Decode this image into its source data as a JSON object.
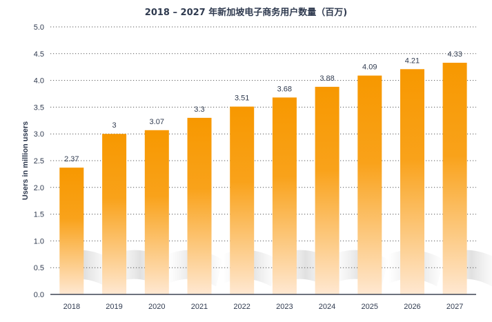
{
  "chart_data": {
    "type": "bar",
    "title": "2018 – 2027 年新加坡电子商务用户数量（百万)",
    "xlabel": "",
    "ylabel": "Users in million users",
    "categories": [
      "2018",
      "2019",
      "2020",
      "2021",
      "2022",
      "2023",
      "2024",
      "2025",
      "2026",
      "2027"
    ],
    "values": [
      2.37,
      3,
      3.07,
      3.3,
      3.51,
      3.68,
      3.88,
      4.09,
      4.21,
      4.33
    ],
    "value_labels": [
      "2.37",
      "3",
      "3.07",
      "3.3",
      "3.51",
      "3.68",
      "3.88",
      "4.09",
      "4.21",
      "4.33"
    ],
    "ylim": [
      0,
      5
    ],
    "yticks": [
      "0.0",
      "0.5",
      "1.0",
      "1.5",
      "2.0",
      "2.5",
      "3.0",
      "3.5",
      "4.0",
      "4.5",
      "5.0"
    ],
    "grid": true,
    "legend": "none",
    "colors": {
      "bar_top": "#f79800",
      "bar_bottom": "#ffe8d2",
      "text": "#2f3a4f",
      "grid": "#555555"
    }
  }
}
